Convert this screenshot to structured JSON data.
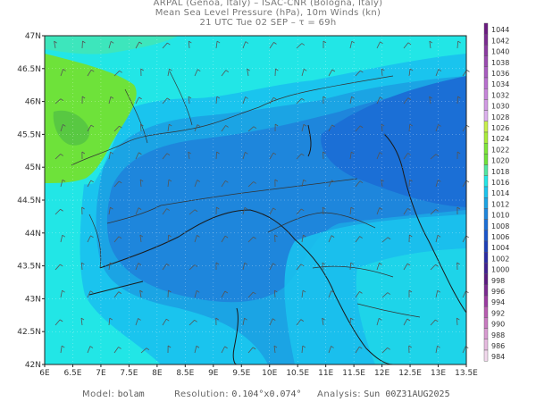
{
  "title": {
    "line1": "ARPAL (Genoa, Italy)  –  ISAC-CNR (Bologna, Italy)",
    "line2": "Mean Sea Level Pressure (hPa), 10m Winds (kn)",
    "line3": "21 UTC Tue 02 SEP  –  τ = 69h"
  },
  "map": {
    "lat_labels": [
      "47N",
      "46.5N",
      "46N",
      "45.5N",
      "45N",
      "44.5N",
      "44N",
      "43.5N",
      "43N",
      "42.5N",
      "42N"
    ],
    "lon_labels": [
      "6E",
      "6.5E",
      "7E",
      "7.5E",
      "8E",
      "8.5E",
      "9E",
      "9.5E",
      "10E",
      "10.5E",
      "11E",
      "11.5E",
      "12E",
      "12.5E",
      "13E",
      "13.5E"
    ],
    "region": "Northern Italy / Ligurian Sea",
    "colors": {
      "cyan": "#22e6e6",
      "light_blue": "#1ac4ee",
      "mid_blue": "#1ba4e4",
      "deep_blue": "#1e86dc",
      "darker_blue": "#1b6fd6",
      "green": "#6ee23a",
      "lime": "#9be830"
    }
  },
  "colorbar": {
    "levels": [
      "1044",
      "1042",
      "1040",
      "1038",
      "1036",
      "1034",
      "1032",
      "1030",
      "1028",
      "1026",
      "1024",
      "1022",
      "1020",
      "1018",
      "1016",
      "1014",
      "1012",
      "1010",
      "1008",
      "1006",
      "1004",
      "1002",
      "1000",
      "998",
      "996",
      "994",
      "992",
      "990",
      "988",
      "986",
      "984"
    ],
    "colors": [
      "#6a1b80",
      "#7a2a90",
      "#8a3aa0",
      "#9a4ab0",
      "#a85cc0",
      "#b86fcf",
      "#c685da",
      "#d29ae4",
      "#ddb0ee",
      "#c8f04a",
      "#a8ec38",
      "#7ee638",
      "#6ee23a",
      "#50e6a0",
      "#22e6e6",
      "#1ac4ee",
      "#1ba4e4",
      "#1e86dc",
      "#1b6fd6",
      "#1a56cc",
      "#1e40b8",
      "#2a2aa4",
      "#402090",
      "#5a1a80",
      "#7a2a90",
      "#9a3aa0",
      "#b85cb0",
      "#c87ac0",
      "#d89ad0",
      "#e6badf",
      "#f2d8ec"
    ]
  },
  "footer": {
    "model_label": "Model:",
    "model_value": "bolam",
    "resolution_label": "Resolution:",
    "resolution_value": "0.104°x0.074°",
    "analysis_label": "Analysis:",
    "analysis_value": "Sun 00Z31AUG2025"
  }
}
